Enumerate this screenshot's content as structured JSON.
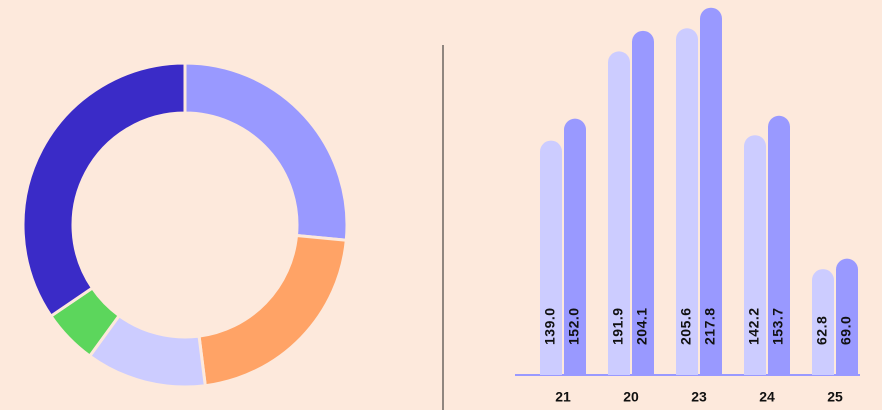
{
  "chart_data": [
    {
      "type": "donut",
      "values": [
        26.5,
        21.5,
        12,
        5.5,
        34.5
      ],
      "colors": [
        "#9999ff",
        "#ffa366",
        "#ccccff",
        "#5cd65c",
        "#3a2bc7"
      ]
    },
    {
      "type": "bar",
      "categories": [
        "21",
        "20",
        "23",
        "24",
        "25"
      ],
      "series": [
        {
          "color": "#ccccff",
          "values": [
            139.0,
            191.9,
            205.6,
            142.2,
            62.8
          ],
          "value_labels": [
            "139.0",
            "191.9",
            "205.6",
            "142.2",
            "62.8"
          ]
        },
        {
          "color": "#9999ff",
          "values": [
            152.0,
            204.1,
            217.8,
            153.7,
            69.0
          ],
          "value_labels": [
            "152.0",
            "204.1",
            "217.8",
            "153.7",
            "69.0"
          ]
        }
      ],
      "ylim": [
        0,
        220
      ]
    }
  ]
}
